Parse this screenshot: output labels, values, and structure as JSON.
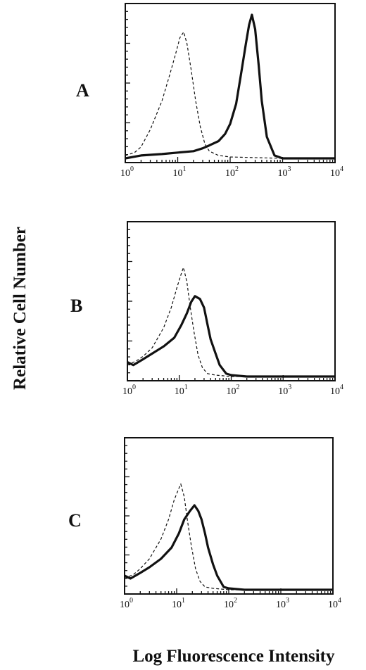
{
  "chart_data": [
    {
      "type": "line",
      "panel_label": "A",
      "xscale": "log",
      "xlim": [
        1,
        10000
      ],
      "ylim": [
        0,
        100
      ],
      "x_ticks": [
        1,
        10,
        100,
        1000,
        10000
      ],
      "series": [
        {
          "style": "solid",
          "x": [
            1,
            2,
            5,
            10,
            20,
            30,
            40,
            60,
            80,
            100,
            130,
            160,
            200,
            230,
            260,
            300,
            350,
            400,
            500,
            700,
            1000,
            10000
          ],
          "y": [
            0,
            2,
            3,
            4,
            5,
            7,
            9,
            12,
            17,
            24,
            38,
            58,
            80,
            93,
            100,
            90,
            65,
            40,
            15,
            2,
            0,
            0
          ]
        },
        {
          "style": "dashed",
          "x": [
            1,
            1.5,
            2,
            3,
            5,
            7,
            9,
            11,
            13,
            15,
            18,
            22,
            27,
            33,
            40,
            60,
            100,
            1000,
            10000
          ],
          "y": [
            2,
            4,
            8,
            20,
            40,
            58,
            72,
            84,
            88,
            80,
            62,
            40,
            22,
            10,
            5,
            2,
            1,
            0,
            0
          ]
        }
      ]
    },
    {
      "type": "line",
      "panel_label": "B",
      "xscale": "log",
      "xlim": [
        1,
        10000
      ],
      "ylim": [
        0,
        100
      ],
      "x_ticks": [
        1,
        10,
        100,
        1000,
        10000
      ],
      "series": [
        {
          "style": "solid",
          "x": [
            1,
            1.3,
            2,
            3,
            5,
            8,
            11,
            14,
            17,
            20,
            25,
            30,
            35,
            40,
            50,
            60,
            80,
            100,
            200,
            1000,
            10000
          ],
          "y": [
            10,
            8,
            12,
            16,
            21,
            27,
            36,
            44,
            52,
            56,
            54,
            48,
            36,
            26,
            16,
            8,
            2,
            1,
            0,
            0,
            0
          ]
        },
        {
          "style": "dashed",
          "x": [
            1,
            1.5,
            2,
            3,
            5,
            7,
            9,
            11,
            12,
            14,
            16,
            19,
            23,
            28,
            35,
            50,
            100,
            10000
          ],
          "y": [
            8,
            11,
            14,
            20,
            34,
            48,
            62,
            72,
            76,
            66,
            50,
            32,
            15,
            6,
            2,
            1,
            0,
            0
          ]
        }
      ]
    },
    {
      "type": "line",
      "panel_label": "C",
      "xscale": "log",
      "xlim": [
        1,
        10000
      ],
      "ylim": [
        0,
        100
      ],
      "x_ticks": [
        1,
        10,
        100,
        1000,
        10000
      ],
      "series": [
        {
          "style": "solid",
          "x": [
            1,
            1.3,
            2,
            3,
            5,
            8,
            11,
            14,
            18,
            22,
            26,
            30,
            35,
            40,
            50,
            60,
            80,
            100,
            200,
            1000,
            10000
          ],
          "y": [
            10,
            8,
            12,
            16,
            22,
            30,
            40,
            50,
            56,
            60,
            56,
            50,
            40,
            30,
            18,
            10,
            2,
            1,
            0,
            0,
            0
          ]
        },
        {
          "style": "dashed",
          "x": [
            1,
            1.5,
            2,
            3,
            5,
            7,
            9,
            11,
            12,
            14,
            16,
            19,
            23,
            28,
            35,
            50,
            100,
            10000
          ],
          "y": [
            8,
            11,
            15,
            22,
            36,
            50,
            64,
            72,
            75,
            66,
            50,
            32,
            15,
            6,
            2,
            1,
            0,
            0
          ]
        }
      ]
    }
  ],
  "axis_titles": {
    "x": "Log Fluorescence Intensity",
    "y": "Relative Cell Number"
  }
}
